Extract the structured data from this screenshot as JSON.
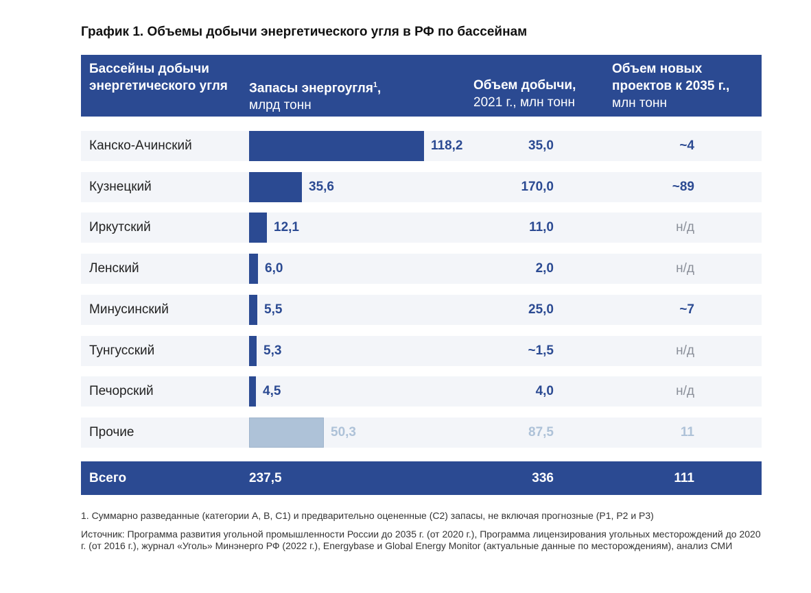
{
  "chart_data": {
    "type": "table",
    "title": "График 1. Объемы добычи энергетического угля в РФ по бассейнам",
    "headers": {
      "basin": "Бассейны добычи энергетического угля",
      "reserves_bold": "Запасы энергоугля",
      "reserves_sup": "1",
      "reserves_tail": ",",
      "reserves_unit": "млрд тонн",
      "production_bold": "Объем добычи,",
      "production_unit": "2021 г., млн тонн",
      "projects_bold": "Объем новых проектов к 2035 г.,",
      "projects_unit": "млн тонн"
    },
    "rows": [
      {
        "name": "Канско-Ачинский",
        "reserves": 118.2,
        "reserves_label": "118,2",
        "production": "35,0",
        "projects": "~4",
        "projects_na": false,
        "muted": false
      },
      {
        "name": "Кузнецкий",
        "reserves": 35.6,
        "reserves_label": "35,6",
        "production": "170,0",
        "projects": "~89",
        "projects_na": false,
        "muted": false
      },
      {
        "name": "Иркутский",
        "reserves": 12.1,
        "reserves_label": "12,1",
        "production": "11,0",
        "projects": "н/д",
        "projects_na": true,
        "muted": false
      },
      {
        "name": "Ленский",
        "reserves": 6.0,
        "reserves_label": "6,0",
        "production": "2,0",
        "projects": "н/д",
        "projects_na": true,
        "muted": false
      },
      {
        "name": "Минусинский",
        "reserves": 5.5,
        "reserves_label": "5,5",
        "production": "25,0",
        "projects": "~7",
        "projects_na": false,
        "muted": false
      },
      {
        "name": "Тунгусский",
        "reserves": 5.3,
        "reserves_label": "5,3",
        "production": "~1,5",
        "projects": "н/д",
        "projects_na": true,
        "muted": false
      },
      {
        "name": "Печорский",
        "reserves": 4.5,
        "reserves_label": "4,5",
        "production": "4,0",
        "projects": "н/д",
        "projects_na": true,
        "muted": false
      },
      {
        "name": "Прочие",
        "reserves": 50.3,
        "reserves_label": "50,3",
        "production": "87,5",
        "projects": "11",
        "projects_na": false,
        "muted": true
      }
    ],
    "total": {
      "label": "Всего",
      "reserves": "237,5",
      "production": "336",
      "projects": "111"
    },
    "bar_max": 118.2
  },
  "notes": {
    "footnote": "1. Суммарно разведанные (категории А, B, C1) и предварительно оцененные (C2) запасы, не включая прогнозные (P1, P2 и P3)",
    "source": "Источник: Программа развития угольной промышленности России до 2035 г. (от 2020 г.), Программа лицензирования угольных месторождений до 2020 г. (от 2016 г.), журнал «Уголь» Минэнерго РФ (2022 г.), Energybase и Global Energy Monitor (актуальные данные по месторождениям), анализ СМИ"
  },
  "colors": {
    "accent": "#2b4a92",
    "muted": "#aec2d8",
    "row_bg": "#f3f5f9",
    "na": "#8a8f99"
  }
}
